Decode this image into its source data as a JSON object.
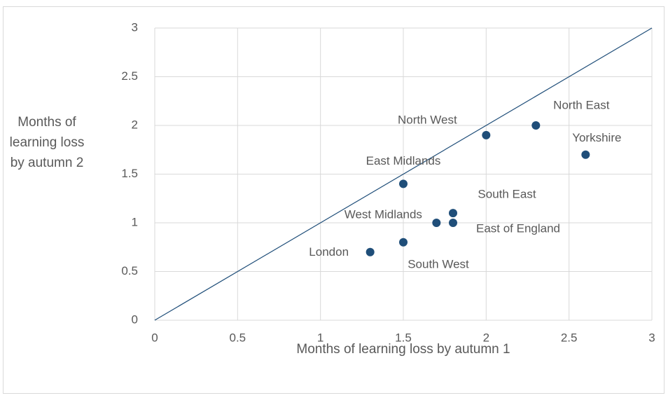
{
  "chart_data": {
    "type": "scatter",
    "x_label": "Months of learning loss by autumn 1",
    "y_label": "Months of learning loss by autumn 2",
    "point_labels": [
      "North West",
      "North East",
      "Yorkshire",
      "East Midlands",
      "South East",
      "West Midlands",
      "East of England",
      "London",
      "South West"
    ],
    "x": [
      2.0,
      2.3,
      2.6,
      1.5,
      1.8,
      1.7,
      1.8,
      1.3,
      1.5
    ],
    "y": [
      1.9,
      2.0,
      1.7,
      1.4,
      1.1,
      1.0,
      1.0,
      0.7,
      0.8
    ],
    "color": "#1f4e79",
    "reference_line": {
      "x": [
        0,
        3
      ],
      "y": [
        0,
        3
      ],
      "color": "#1f4e79"
    },
    "xlim": [
      0,
      3
    ],
    "ylim": [
      0,
      3
    ],
    "xticks": [
      0,
      0.5,
      1,
      1.5,
      2,
      2.5,
      3
    ],
    "yticks": [
      0,
      0.5,
      1,
      1.5,
      2,
      2.5,
      3
    ],
    "grid": true
  }
}
